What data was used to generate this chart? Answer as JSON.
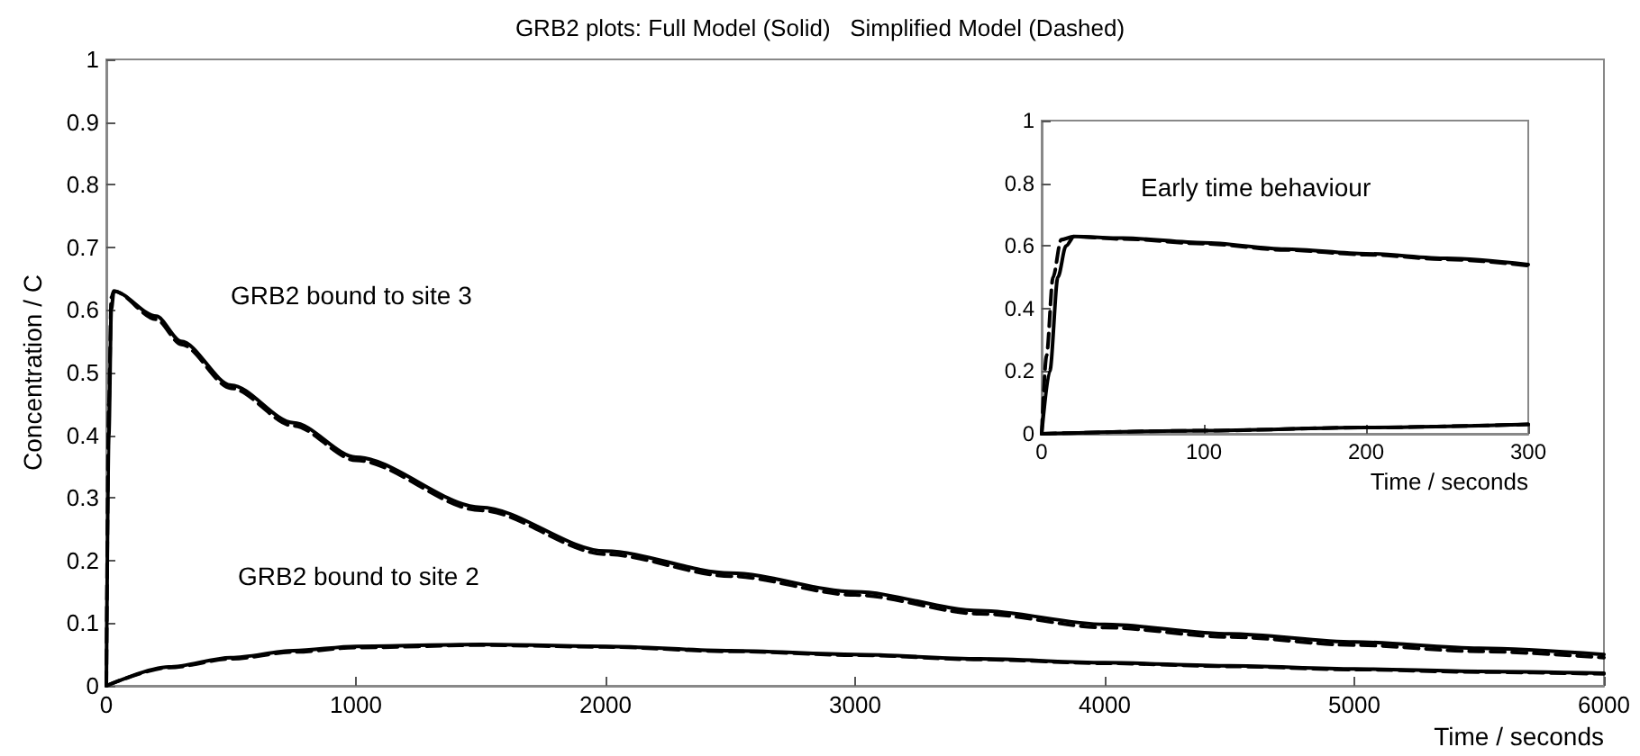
{
  "chart_data": [
    {
      "type": "line",
      "title": "GRB2 plots: Full Model (Solid)   Simplified Model (Dashed)",
      "xlabel": "Time / seconds",
      "ylabel": "Concentration / C",
      "xlim": [
        0,
        6000
      ],
      "xticks": [
        0,
        1000,
        2000,
        3000,
        4000,
        5000,
        6000
      ],
      "ylim": [
        0,
        1
      ],
      "yticks": [
        0,
        0.1,
        0.2,
        0.3,
        0.4,
        0.5,
        0.6,
        0.7,
        0.8,
        0.9,
        1
      ],
      "grid": false,
      "marker": "none",
      "annotations": [
        "GRB2 bound to site 3",
        "GRB2 bound to site 2"
      ],
      "series": [
        {
          "color": "#000000",
          "line_style": "solid",
          "x": [
            0,
            10,
            20,
            30,
            200,
            300,
            500,
            750,
            1000,
            1500,
            2000,
            2500,
            3000,
            3500,
            4000,
            4500,
            5000,
            5500,
            6000
          ],
          "values": [
            0,
            0.4,
            0.6,
            0.63,
            0.59,
            0.55,
            0.48,
            0.42,
            0.365,
            0.285,
            0.215,
            0.18,
            0.15,
            0.12,
            0.098,
            0.083,
            0.07,
            0.06,
            0.05
          ]
        },
        {
          "color": "#000000",
          "line_style": "dashed",
          "x": [
            0,
            10,
            20,
            30,
            200,
            300,
            500,
            750,
            1000,
            1500,
            2000,
            2500,
            3000,
            3500,
            4000,
            4500,
            5000,
            5500,
            6000
          ],
          "values": [
            0,
            0.45,
            0.62,
            0.63,
            0.585,
            0.545,
            0.475,
            0.415,
            0.36,
            0.28,
            0.21,
            0.175,
            0.145,
            0.115,
            0.093,
            0.078,
            0.065,
            0.055,
            0.045
          ]
        },
        {
          "color": "#000000",
          "line_style": "solid",
          "x": [
            0,
            250,
            500,
            750,
            1000,
            1500,
            2000,
            2500,
            3000,
            3500,
            4000,
            4500,
            5000,
            5500,
            6000
          ],
          "values": [
            0,
            0.03,
            0.045,
            0.056,
            0.063,
            0.066,
            0.063,
            0.056,
            0.05,
            0.043,
            0.037,
            0.032,
            0.027,
            0.023,
            0.02
          ]
        },
        {
          "color": "#000000",
          "line_style": "dashed",
          "x": [
            0,
            250,
            500,
            750,
            1000,
            1500,
            2000,
            2500,
            3000,
            3500,
            4000,
            4500,
            5000,
            5500,
            6000
          ],
          "values": [
            0,
            0.029,
            0.043,
            0.054,
            0.061,
            0.065,
            0.062,
            0.055,
            0.049,
            0.042,
            0.036,
            0.031,
            0.026,
            0.022,
            0.019
          ]
        }
      ]
    },
    {
      "type": "line",
      "title": "Early time behaviour",
      "xlabel": "Time / seconds",
      "xlim": [
        0,
        300
      ],
      "xticks": [
        0,
        100,
        200,
        300
      ],
      "ylim": [
        0,
        1
      ],
      "yticks": [
        0,
        0.2,
        0.4,
        0.6,
        0.8,
        1
      ],
      "grid": false,
      "marker": "none",
      "series": [
        {
          "color": "#000000",
          "line_style": "solid",
          "x": [
            0,
            5,
            10,
            15,
            20,
            50,
            100,
            150,
            200,
            250,
            300
          ],
          "values": [
            0,
            0.2,
            0.5,
            0.6,
            0.63,
            0.625,
            0.61,
            0.59,
            0.575,
            0.56,
            0.54
          ]
        },
        {
          "color": "#000000",
          "line_style": "dashed",
          "x": [
            0,
            3,
            7,
            12,
            20,
            50,
            100,
            150,
            200,
            250,
            300
          ],
          "values": [
            0,
            0.25,
            0.5,
            0.62,
            0.63,
            0.622,
            0.607,
            0.587,
            0.572,
            0.557,
            0.537
          ]
        },
        {
          "color": "#000000",
          "line_style": "solid",
          "x": [
            0,
            100,
            200,
            300
          ],
          "values": [
            0,
            0.01,
            0.02,
            0.03
          ]
        },
        {
          "color": "#000000",
          "line_style": "dashed",
          "x": [
            0,
            100,
            200,
            300
          ],
          "values": [
            0,
            0.01,
            0.02,
            0.03
          ]
        }
      ]
    }
  ]
}
